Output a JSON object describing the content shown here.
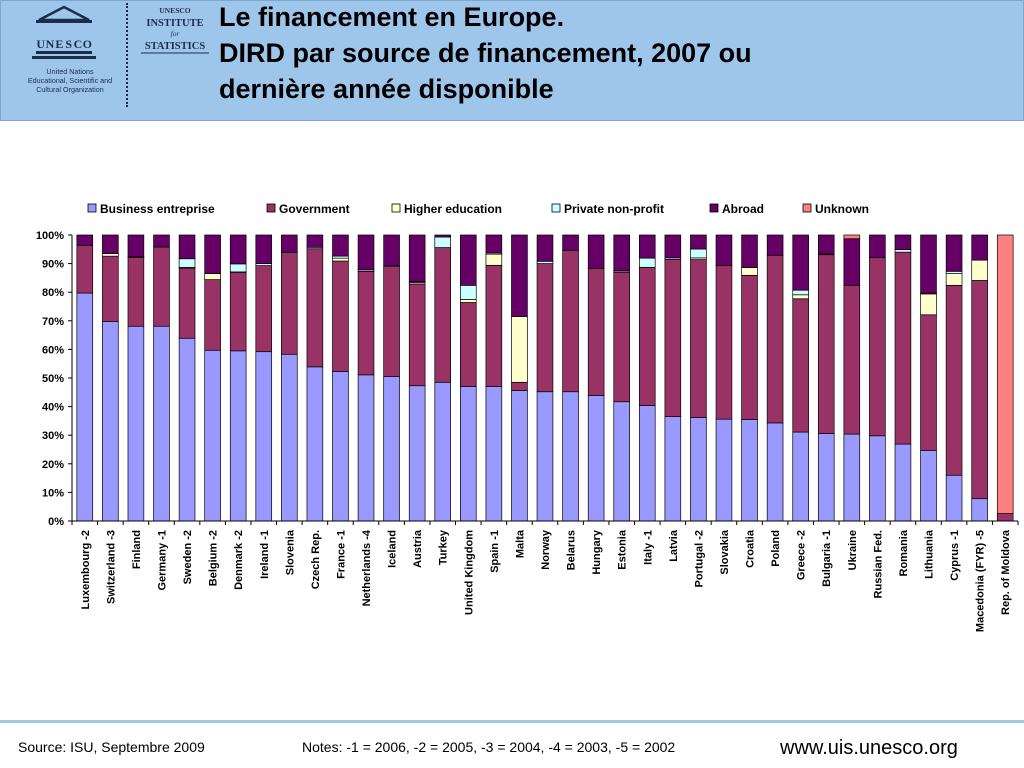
{
  "header": {
    "org_short": "UNESCO",
    "institute_lines": [
      "UNESCO",
      "INSTITUTE",
      "for",
      "STATISTICS"
    ],
    "org_lines": [
      "United Nations",
      "Educational, Scientific and",
      "Cultural Organization"
    ],
    "title_lines": [
      "Le financement en Europe.",
      "DIRD par source de financement, 2007 ou",
      "dernière année disponible"
    ],
    "band_color": "#9ec6ea"
  },
  "chart_data": {
    "type": "bar",
    "stacked": true,
    "y_format": "percent",
    "ylim": [
      0,
      100
    ],
    "yticks": [
      0,
      10,
      20,
      30,
      40,
      50,
      60,
      70,
      80,
      90,
      100
    ],
    "grid": false,
    "legend_position": "top",
    "categories": [
      "Luxembourg -2",
      "Switzerland -3",
      "Finland",
      "Germany -1",
      "Sweden -2",
      "Belgium -2",
      "Denmark -2",
      "Ireland -1",
      "Slovenia",
      "Czech Rep.",
      "France -1",
      "Netherlands -4",
      "Iceland",
      "Austria",
      "Turkey",
      "United Kingdom",
      "Spain -1",
      "Malta",
      "Norway",
      "Belarus",
      "Hungary",
      "Estonia",
      "Italy -1",
      "Latvia",
      "Portugal -2",
      "Slovakia",
      "Croatia",
      "Poland",
      "Greece -2",
      "Bulgaria -1",
      "Ukraine",
      "Russian Fed.",
      "Romania",
      "Lithuania",
      "Cyprus -1",
      "Macedonia (FYR) -5",
      "Rep. of Moldova"
    ],
    "series": [
      {
        "name": "Business entreprise",
        "color": "#9999ff",
        "values": [
          79.7,
          69.7,
          68.1,
          68.1,
          63.9,
          59.7,
          59.5,
          59.2,
          58.3,
          53.9,
          52.3,
          51.1,
          50.5,
          47.3,
          48.5,
          47.0,
          47.0,
          45.6,
          45.2,
          45.2,
          43.9,
          41.7,
          40.4,
          36.5,
          36.2,
          35.6,
          35.5,
          34.3,
          31.1,
          30.6,
          30.4,
          29.8,
          26.9,
          24.7,
          16.0,
          7.8,
          0
        ]
      },
      {
        "name": "Government",
        "color": "#993366",
        "values": [
          16.6,
          22.9,
          24.1,
          27.7,
          24.5,
          24.7,
          27.5,
          30.1,
          35.6,
          41.3,
          38.6,
          36.2,
          38.6,
          35.6,
          47.1,
          29.4,
          42.4,
          2.9,
          44.8,
          49.4,
          44.4,
          45.2,
          48.3,
          55.0,
          55.2,
          53.7,
          50.4,
          58.6,
          46.6,
          62.5,
          52.0,
          62.3,
          67.1,
          47.4,
          66.4,
          76.3,
          2.6
        ]
      },
      {
        "name": "Higher education",
        "color": "#ffffcc",
        "values": [
          0,
          0.9,
          0.2,
          0,
          0.3,
          2.1,
          0.1,
          0,
          0,
          0,
          1.0,
          0,
          0,
          0.5,
          0,
          1.1,
          3.9,
          23.0,
          0,
          0,
          0,
          0.5,
          0,
          0,
          0.6,
          0,
          2.7,
          0,
          1.4,
          0,
          0,
          0,
          0,
          7.3,
          4.1,
          7.1,
          0
        ]
      },
      {
        "name": "Private non-profit",
        "color": "#ccffff",
        "values": [
          0,
          0,
          0,
          0,
          3.0,
          0,
          2.8,
          0.7,
          0,
          0.5,
          0.7,
          0.5,
          0.3,
          0.3,
          3.7,
          4.9,
          0.4,
          0,
          0.8,
          0,
          0,
          0.1,
          3.2,
          0.5,
          3.1,
          0,
          0,
          0,
          1.6,
          0.3,
          0,
          0,
          0.9,
          0.3,
          0.8,
          0,
          0
        ]
      },
      {
        "name": "Abroad",
        "color": "#660066",
        "values": [
          3.7,
          6.5,
          7.6,
          4.2,
          8.3,
          13.5,
          10.1,
          10.0,
          6.1,
          4.3,
          7.4,
          12.2,
          10.6,
          16.3,
          0.7,
          17.6,
          6.3,
          28.5,
          9.2,
          5.4,
          11.7,
          12.5,
          8.1,
          8.0,
          4.9,
          10.7,
          11.4,
          7.1,
          19.3,
          6.6,
          16.3,
          7.9,
          5.1,
          20.3,
          12.7,
          8.8,
          0
        ]
      },
      {
        "name": "Unknown",
        "color": "#ff8080",
        "values": [
          0,
          0,
          0,
          0,
          0,
          0,
          0,
          0,
          0,
          0,
          0,
          0,
          0,
          0,
          0,
          0,
          0,
          0,
          0,
          0,
          0,
          0,
          0,
          0,
          0,
          0,
          0,
          0,
          0,
          0,
          1.3,
          0,
          0,
          0,
          0,
          0,
          97.4
        ]
      }
    ]
  },
  "footer": {
    "source": "Source: ISU, Septembre 2009",
    "notes": "Notes: -1 = 2006, -2 = 2005, -3 = 2004, -4 = 2003, -5 = 2002",
    "url": "www.uis.unesco.org",
    "rule_color": "#9ec6ea"
  }
}
